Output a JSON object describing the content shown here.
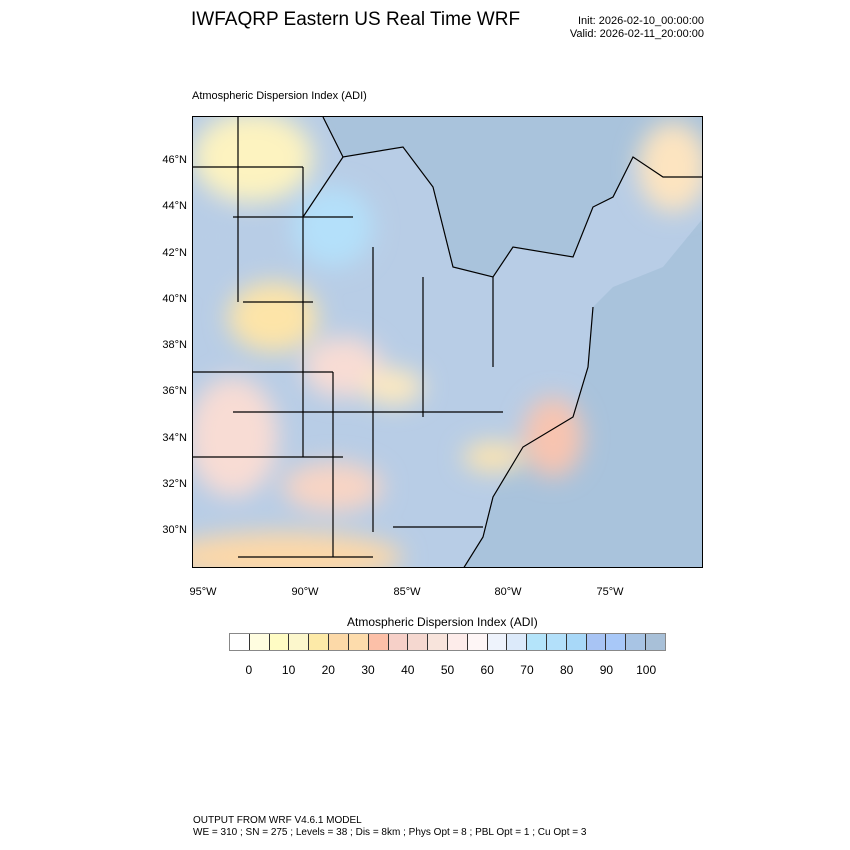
{
  "header": {
    "title": "IWFAQRP Eastern US Real Time WRF",
    "init": "Init: 2026-02-10_00:00:00",
    "valid": "Valid: 2026-02-11_20:00:00",
    "subtitle": "Atmospheric Dispersion Index   (ADI)"
  },
  "map": {
    "lat_labels": [
      "46°N",
      "44°N",
      "42°N",
      "40°N",
      "38°N",
      "36°N",
      "34°N",
      "32°N",
      "30°N"
    ],
    "lon_labels": [
      "95°W",
      "90°W",
      "85°W",
      "80°W",
      "75°W"
    ],
    "water_color": "#a9c3dc"
  },
  "colorbar": {
    "title": "Atmospheric Dispersion Index  (ADI)",
    "colors": [
      "#ffffff",
      "#fffde0",
      "#fffcc4",
      "#fcf7cc",
      "#fdeaa8",
      "#fcd9a8",
      "#fddcac",
      "#fcc0a8",
      "#f6d0c8",
      "#f5d8d0",
      "#f8e4dc",
      "#fdecea",
      "#fef6f6",
      "#eef3fc",
      "#dceafa",
      "#b4e4fa",
      "#b3e0fa",
      "#a8d8f8",
      "#a8c4f4",
      "#a8c8f8",
      "#a8c4e4",
      "#a8c0d8"
    ],
    "labels": [
      "0",
      "10",
      "20",
      "30",
      "40",
      "50",
      "60",
      "70",
      "80",
      "90",
      "100"
    ]
  },
  "footer": {
    "line1": "OUTPUT FROM WRF V4.6.1 MODEL",
    "line2": "WE = 310 ; SN = 275 ; Levels = 38 ; Dis = 8km ; Phys Opt = 8 ; PBL Opt = 1 ; Cu Opt = 3"
  }
}
